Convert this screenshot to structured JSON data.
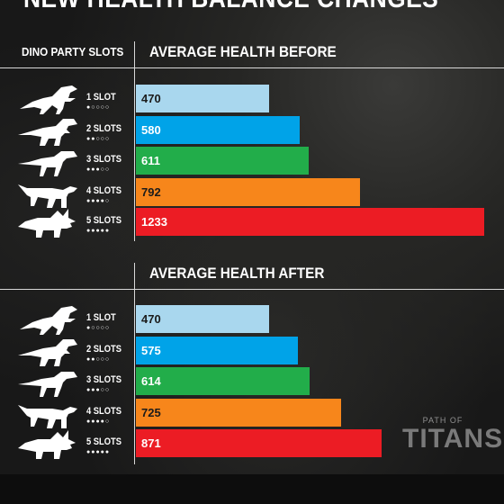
{
  "title": "NEW HEALTH BALANCE CHANGES",
  "slots_header": "DINO PARTY SLOTS",
  "colors": [
    "#a9d7ee",
    "#00a3e8",
    "#22ad4a",
    "#f7861b",
    "#ec1c24"
  ],
  "rows": [
    {
      "slot": "1 SLOT",
      "dots": "●○○○○",
      "icon": "raptor-icon"
    },
    {
      "slot": "2 SLOTS",
      "dots": "●●○○○",
      "icon": "theropod-icon"
    },
    {
      "slot": "3 SLOTS",
      "dots": "●●●○○",
      "icon": "carnivore-icon"
    },
    {
      "slot": "4 SLOTS",
      "dots": "●●●●○",
      "icon": "hadrosaur-icon"
    },
    {
      "slot": "5 SLOTS",
      "dots": "●●●●●",
      "icon": "triceratops-icon"
    }
  ],
  "chart_data": [
    {
      "type": "bar",
      "title": "AVERAGE HEALTH BEFORE",
      "categories": [
        "1 SLOT",
        "2 SLOTS",
        "3 SLOTS",
        "4 SLOTS",
        "5 SLOTS"
      ],
      "values": [
        470,
        580,
        611,
        792,
        1233
      ],
      "orientation": "horizontal"
    },
    {
      "type": "bar",
      "title": "AVERAGE HEALTH AFTER",
      "categories": [
        "1 SLOT",
        "2 SLOTS",
        "3 SLOTS",
        "4 SLOTS",
        "5 SLOTS"
      ],
      "values": [
        470,
        575,
        614,
        725,
        871
      ],
      "orientation": "horizontal"
    }
  ],
  "logo": {
    "small": "PATH OF",
    "big": "TITANS"
  }
}
